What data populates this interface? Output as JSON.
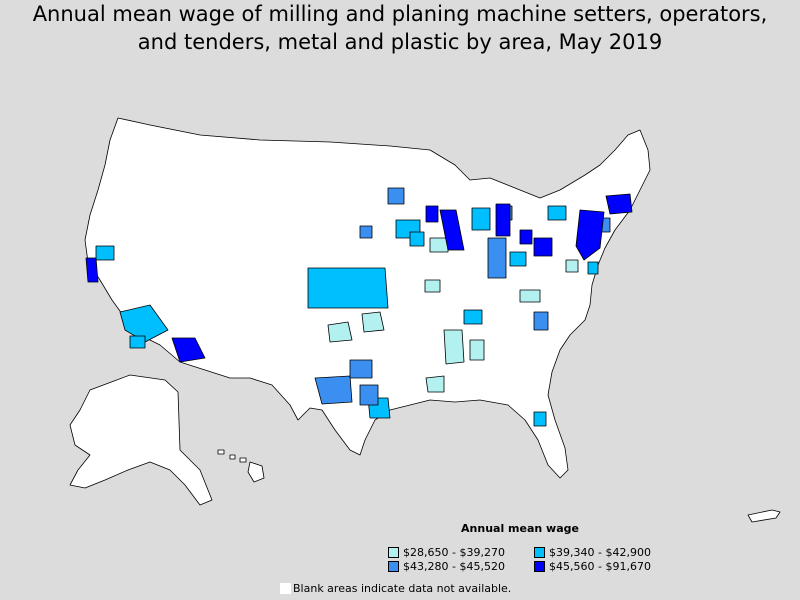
{
  "title": {
    "line1": "Annual mean wage of milling and planing machine setters, operators,",
    "line2": "and tenders, metal and plastic by area, May 2019"
  },
  "legend": {
    "title": "Annual mean wage",
    "items": [
      {
        "label": "$28,650 - $39,270",
        "color": "#b3f0f0"
      },
      {
        "label": "$39,340 - $42,900",
        "color": "#00bfff"
      },
      {
        "label": "$43,280 - $45,520",
        "color": "#3a8ff0"
      },
      {
        "label": "$45,560 - $91,670",
        "color": "#0000ff"
      }
    ]
  },
  "note": "Blank areas indicate data not available.",
  "colors": {
    "background": "#dcdcdc",
    "blank": "#ffffff",
    "border": "#000000"
  }
}
